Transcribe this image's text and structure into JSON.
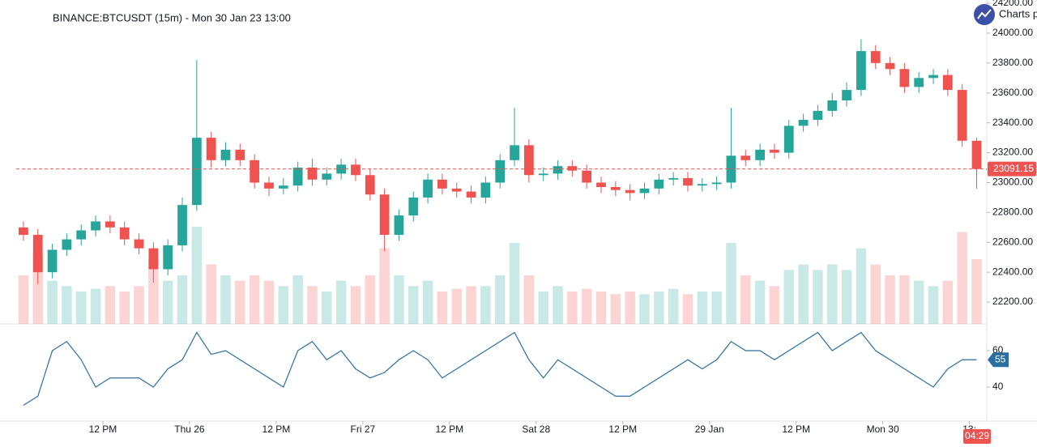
{
  "chart_data": [
    {
      "type": "candlestick",
      "title": "BINANCE:BTCUSDT (15m) - Mon 30 Jan 23 13:00",
      "brand": "Charts p",
      "time_label": "04:29",
      "up_color": "#26a69a",
      "down_color": "#ef5350",
      "x": [
        1,
        3,
        5,
        7,
        9,
        11,
        13,
        15,
        17,
        19,
        21,
        23,
        25,
        27,
        29,
        31,
        33,
        35,
        37,
        39,
        41,
        43,
        45,
        47,
        49,
        51,
        53,
        55,
        57,
        59,
        61,
        63,
        65,
        67,
        69,
        71,
        73,
        75,
        77,
        79,
        81,
        83,
        85,
        87,
        89,
        91,
        93,
        95,
        97,
        99,
        101,
        103,
        105,
        107,
        109,
        111,
        113,
        115,
        117,
        119,
        121,
        123,
        125,
        127,
        129,
        131,
        133
      ],
      "open": [
        22700,
        22650,
        22400,
        22550,
        22620,
        22680,
        22740,
        22700,
        22620,
        22560,
        22420,
        22580,
        22850,
        23300,
        23150,
        23220,
        23150,
        23000,
        22960,
        22980,
        23100,
        23020,
        23060,
        23120,
        23050,
        22920,
        22650,
        22780,
        22900,
        23020,
        22960,
        22940,
        22900,
        23000,
        23150,
        23250,
        23050,
        23060,
        23110,
        23080,
        23000,
        22970,
        22950,
        22930,
        22960,
        23020,
        23030,
        22980,
        22990,
        23000,
        23180,
        23150,
        23220,
        23200,
        23380,
        23420,
        23480,
        23550,
        23620,
        23880,
        23800,
        23760,
        23640,
        23700,
        23720,
        23620,
        23280
      ],
      "high": [
        22740,
        22690,
        22590,
        22660,
        22720,
        22780,
        22780,
        22740,
        22660,
        22600,
        22620,
        22900,
        23820,
        23340,
        23270,
        23260,
        23190,
        23040,
        23030,
        23140,
        23160,
        23100,
        23160,
        23160,
        23090,
        22960,
        22820,
        22940,
        23060,
        23060,
        23000,
        22980,
        23040,
        23190,
        23500,
        23290,
        23100,
        23150,
        23150,
        23120,
        23040,
        23010,
        22990,
        23000,
        23060,
        23070,
        23070,
        23030,
        23040,
        23500,
        23220,
        23260,
        23260,
        23420,
        23460,
        23520,
        23600,
        23670,
        23960,
        23920,
        23840,
        23800,
        23740,
        23760,
        23760,
        23660,
        23300
      ],
      "low": [
        22610,
        22320,
        22360,
        22510,
        22580,
        22640,
        22660,
        22580,
        22520,
        22330,
        22380,
        22540,
        22810,
        23100,
        23110,
        23110,
        22960,
        22910,
        22920,
        22940,
        22980,
        22980,
        23020,
        23010,
        22880,
        22540,
        22610,
        22740,
        22860,
        22920,
        22900,
        22860,
        22860,
        22960,
        23110,
        23000,
        23010,
        23020,
        23040,
        22960,
        22930,
        22910,
        22880,
        22890,
        22920,
        22980,
        22940,
        22940,
        22950,
        22960,
        23110,
        23110,
        23160,
        23160,
        23340,
        23380,
        23440,
        23510,
        23580,
        23760,
        23720,
        23600,
        23600,
        23660,
        23580,
        23240,
        22960
      ],
      "close": [
        22650,
        22400,
        22550,
        22620,
        22680,
        22740,
        22700,
        22620,
        22560,
        22420,
        22580,
        22850,
        23300,
        23150,
        23220,
        23150,
        23000,
        22960,
        22980,
        23100,
        23020,
        23060,
        23120,
        23050,
        22920,
        22650,
        22780,
        22900,
        23020,
        22960,
        22940,
        22900,
        23000,
        23150,
        23250,
        23050,
        23060,
        23110,
        23080,
        23000,
        22970,
        22950,
        22930,
        22960,
        23020,
        23030,
        22980,
        22990,
        23000,
        23180,
        23150,
        23220,
        23200,
        23380,
        23420,
        23480,
        23550,
        23620,
        23880,
        23800,
        23760,
        23640,
        23700,
        23720,
        23620,
        23280,
        23091.15
      ],
      "volume": {
        "values": [
          900,
          1300,
          800,
          700,
          600,
          650,
          700,
          600,
          700,
          1200,
          800,
          900,
          1800,
          1100,
          900,
          800,
          900,
          800,
          700,
          900,
          700,
          600,
          800,
          700,
          900,
          1400,
          900,
          700,
          800,
          600,
          650,
          700,
          700,
          900,
          1500,
          900,
          600,
          700,
          600,
          650,
          600,
          550,
          600,
          550,
          600,
          650,
          550,
          600,
          600,
          1500,
          900,
          800,
          700,
          1000,
          1100,
          1000,
          1100,
          1000,
          1400,
          1100,
          900,
          900,
          800,
          700,
          800,
          1700,
          1200
        ],
        "ylim": [
          0,
          6000
        ]
      },
      "xlim": [
        0,
        134.4
      ],
      "xticks": [
        {
          "value": 12,
          "label": "12 PM"
        },
        {
          "value": 24,
          "label": "Thu 26"
        },
        {
          "value": 36,
          "label": "12 PM"
        },
        {
          "value": 48,
          "label": "Fri 27"
        },
        {
          "value": 60,
          "label": "12 PM"
        },
        {
          "value": 72,
          "label": "Sat 28"
        },
        {
          "value": 84,
          "label": "12 PM"
        },
        {
          "value": 96,
          "label": "29 Jan"
        },
        {
          "value": 108,
          "label": "12 PM"
        },
        {
          "value": 120,
          "label": "Mon 30"
        },
        {
          "value": 132,
          "label": "13:"
        }
      ],
      "ylim": [
        22054,
        24222
      ],
      "yticks": [
        {
          "value": 22200,
          "label": "22200.00"
        },
        {
          "value": 22400,
          "label": "22400.00"
        },
        {
          "value": 22600,
          "label": "22600.00"
        },
        {
          "value": 22800,
          "label": "22800.00"
        },
        {
          "value": 23000,
          "label": "23000.00"
        },
        {
          "value": 23200,
          "label": "23200.00"
        },
        {
          "value": 23400,
          "label": "23400.00"
        },
        {
          "value": 23600,
          "label": "23600.00"
        },
        {
          "value": 23800,
          "label": "23800.00"
        },
        {
          "value": 24000,
          "label": "24000.00"
        },
        {
          "value": 24200,
          "label": "24200.00"
        }
      ]
    },
    {
      "type": "line",
      "color": "#2a6f9e",
      "values": [
        30,
        35,
        60,
        65,
        55,
        40,
        45,
        45,
        45,
        40,
        50,
        55,
        70,
        58,
        60,
        55,
        50,
        45,
        40,
        60,
        65,
        55,
        60,
        50,
        45,
        48,
        55,
        60,
        55,
        45,
        50,
        55,
        60,
        65,
        70,
        55,
        45,
        55,
        50,
        45,
        40,
        35,
        35,
        40,
        45,
        50,
        55,
        50,
        55,
        65,
        60,
        60,
        55,
        60,
        65,
        70,
        60,
        65,
        70,
        60,
        55,
        50,
        45,
        40,
        50,
        55,
        55
      ],
      "ylim": [
        21.3,
        74.7
      ],
      "yticks": [
        40,
        60
      ]
    }
  ]
}
